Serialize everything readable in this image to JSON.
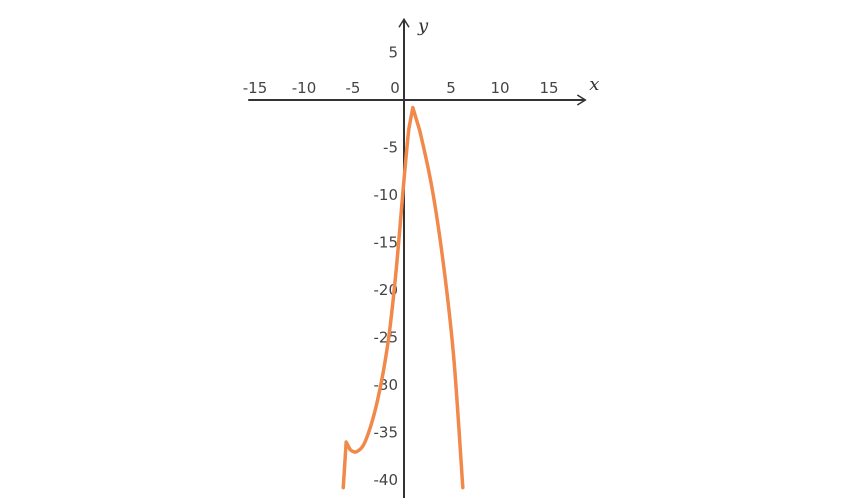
{
  "chart_data": {
    "type": "line",
    "title": "",
    "xlabel": "x",
    "ylabel": "y",
    "xlim": [
      -16,
      18.5
    ],
    "ylim": [
      -41,
      8.5
    ],
    "x_ticks": [
      -15,
      -10,
      -5,
      0,
      5,
      10,
      15
    ],
    "y_ticks": [
      5,
      -5,
      -10,
      -15,
      -20,
      -25,
      -30,
      -35,
      -40
    ],
    "x_tick_labels": [
      "-15",
      "-10",
      "-5",
      "0",
      "5",
      "10",
      "15"
    ],
    "y_tick_labels": [
      "5",
      "-5",
      "-10",
      "-15",
      "-20",
      "-25",
      "-30",
      "-35",
      "-40"
    ],
    "grid": false,
    "series": [
      {
        "color": "#f0894a",
        "x": [
          -6.2,
          -5.9,
          -5.5,
          -4.8,
          -3.9,
          -2.7,
          -1.6,
          -0.8,
          0,
          0.5,
          0.9,
          1.6,
          2.9,
          4.1,
          5.1,
          6.0
        ],
        "y": [
          -40.8,
          -36.0,
          -36.8,
          -37.0,
          -35.8,
          -31.6,
          -25.3,
          -17.9,
          -8.4,
          -3.0,
          -0.8,
          -3.2,
          -9.5,
          -17.9,
          -27.4,
          -40.8
        ]
      }
    ]
  }
}
